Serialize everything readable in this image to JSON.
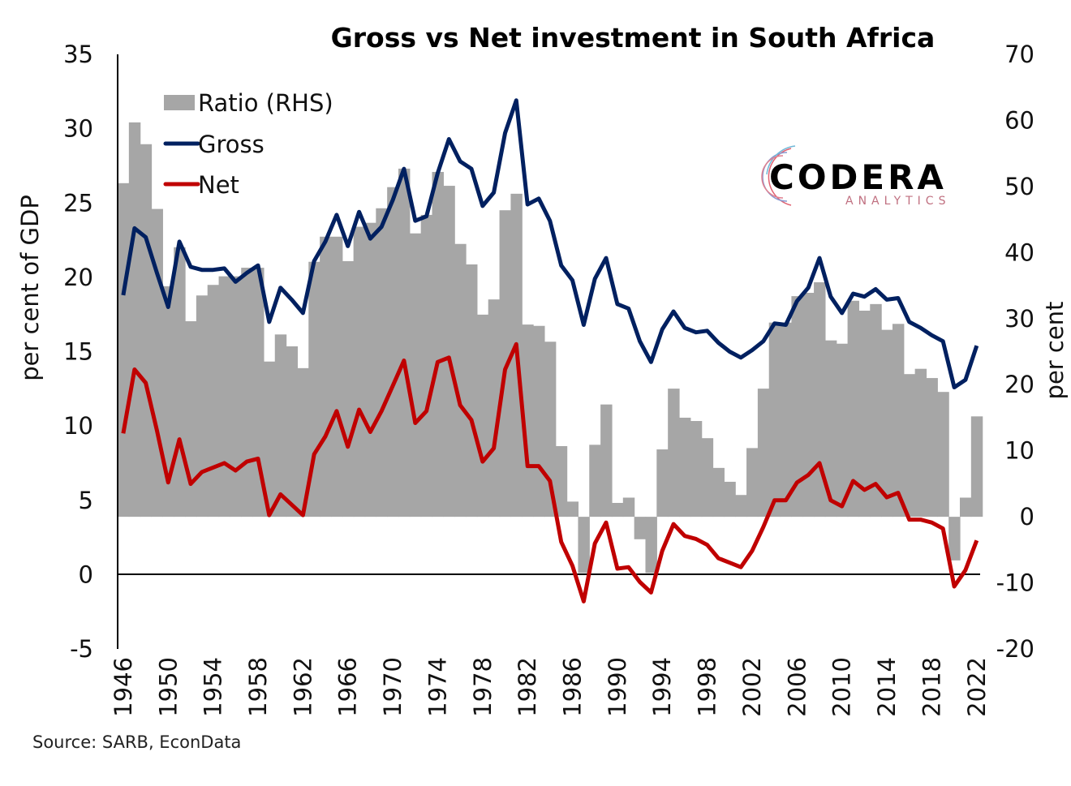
{
  "chart_data": {
    "type": "bar+line",
    "title": "Gross vs Net investment in South Africa",
    "ylabel": "per cent of GDP",
    "y2label": "per cent",
    "ylim": [
      -5,
      35
    ],
    "y2lim": [
      -20,
      70
    ],
    "yticks": [
      -5,
      0,
      5,
      10,
      15,
      20,
      25,
      30,
      35
    ],
    "y2ticks": [
      -20,
      -10,
      0,
      10,
      20,
      30,
      40,
      50,
      60,
      70
    ],
    "grid": false,
    "legend_position": "top-left",
    "source": "Source: SARB, EconData",
    "logo": {
      "name": "CODERA",
      "sub": "ANALYTICS"
    },
    "colors": {
      "ratio": "#a6a6a6",
      "gross": "#002060",
      "net": "#c00000"
    },
    "x": [
      1946,
      1947,
      1948,
      1949,
      1950,
      1951,
      1952,
      1953,
      1954,
      1955,
      1956,
      1957,
      1958,
      1959,
      1960,
      1961,
      1962,
      1963,
      1964,
      1965,
      1966,
      1967,
      1968,
      1969,
      1970,
      1971,
      1972,
      1973,
      1974,
      1975,
      1976,
      1977,
      1978,
      1979,
      1980,
      1981,
      1982,
      1983,
      1984,
      1985,
      1986,
      1987,
      1988,
      1989,
      1990,
      1991,
      1992,
      1993,
      1994,
      1995,
      1996,
      1997,
      1998,
      1999,
      2000,
      2001,
      2002,
      2003,
      2004,
      2005,
      2006,
      2007,
      2008,
      2009,
      2010,
      2011,
      2012,
      2013,
      2014,
      2015,
      2016,
      2017,
      2018,
      2019,
      2020,
      2021,
      2022
    ],
    "xticks": [
      1946,
      1950,
      1954,
      1958,
      1962,
      1966,
      1970,
      1974,
      1978,
      1982,
      1986,
      1990,
      1994,
      1998,
      2002,
      2006,
      2010,
      2014,
      2018,
      2022
    ],
    "series": [
      {
        "name": "Ratio (RHS)",
        "type": "bar",
        "axis": "right",
        "values": [
          50.5,
          59.7,
          56.4,
          46.6,
          34.9,
          40.8,
          29.6,
          33.5,
          35.1,
          36.4,
          36.4,
          37.7,
          37.7,
          23.5,
          27.6,
          25.8,
          22.5,
          38.6,
          42.4,
          42.4,
          38.7,
          43.9,
          44.5,
          46.7,
          49.9,
          52.7,
          42.9,
          45.7,
          52.2,
          50.1,
          41.3,
          38.2,
          30.6,
          32.9,
          46.4,
          48.9,
          29.1,
          28.9,
          26.5,
          10.7,
          2.3,
          -8.5,
          10.9,
          17.0,
          2.1,
          2.9,
          -3.4,
          -8.5,
          10.2,
          19.4,
          15.0,
          14.5,
          11.9,
          7.4,
          5.3,
          3.3,
          10.4,
          19.4,
          29.4,
          29.4,
          33.4,
          33.9,
          35.5,
          26.7,
          26.2,
          32.7,
          31.2,
          32.2,
          28.3,
          29.2,
          21.6,
          22.4,
          21.0,
          18.9,
          -6.6,
          2.9,
          15.2
        ]
      },
      {
        "name": "Gross",
        "type": "line",
        "axis": "left",
        "values": [
          18.8,
          23.3,
          22.7,
          20.3,
          18.0,
          22.4,
          20.7,
          20.5,
          20.5,
          20.6,
          19.7,
          20.3,
          20.8,
          17.0,
          19.3,
          18.5,
          17.6,
          21.1,
          22.4,
          24.2,
          22.1,
          24.4,
          22.6,
          23.4,
          25.2,
          27.3,
          23.8,
          24.1,
          27.0,
          29.3,
          27.8,
          27.3,
          24.8,
          25.7,
          29.7,
          31.9,
          24.9,
          25.3,
          23.8,
          20.8,
          19.8,
          16.8,
          19.9,
          21.3,
          18.2,
          17.9,
          15.7,
          14.3,
          16.5,
          17.7,
          16.6,
          16.3,
          16.4,
          15.6,
          15.0,
          14.6,
          15.1,
          15.7,
          16.9,
          16.8,
          18.4,
          19.3,
          21.3,
          18.7,
          17.6,
          18.9,
          18.7,
          19.2,
          18.5,
          18.6,
          17.0,
          16.6,
          16.1,
          15.7,
          12.6,
          13.1,
          15.4
        ]
      },
      {
        "name": "Net",
        "type": "line",
        "axis": "left",
        "values": [
          9.5,
          13.8,
          12.9,
          9.7,
          6.2,
          9.1,
          6.1,
          6.9,
          7.2,
          7.5,
          7.0,
          7.6,
          7.8,
          4.0,
          5.4,
          4.7,
          4.0,
          8.1,
          9.3,
          11.0,
          8.6,
          11.1,
          9.6,
          11.0,
          12.7,
          14.4,
          10.2,
          11.0,
          14.3,
          14.6,
          11.4,
          10.4,
          7.6,
          8.5,
          13.8,
          15.5,
          7.3,
          7.3,
          6.3,
          2.2,
          0.6,
          -1.8,
          2.1,
          3.5,
          0.4,
          0.5,
          -0.5,
          -1.2,
          1.6,
          3.4,
          2.6,
          2.4,
          2.0,
          1.1,
          0.8,
          0.5,
          1.6,
          3.2,
          5.0,
          5.0,
          6.2,
          6.7,
          7.5,
          5.0,
          4.6,
          6.3,
          5.7,
          6.1,
          5.2,
          5.5,
          3.7,
          3.7,
          3.5,
          3.1,
          -0.8,
          0.3,
          2.3
        ]
      }
    ]
  }
}
